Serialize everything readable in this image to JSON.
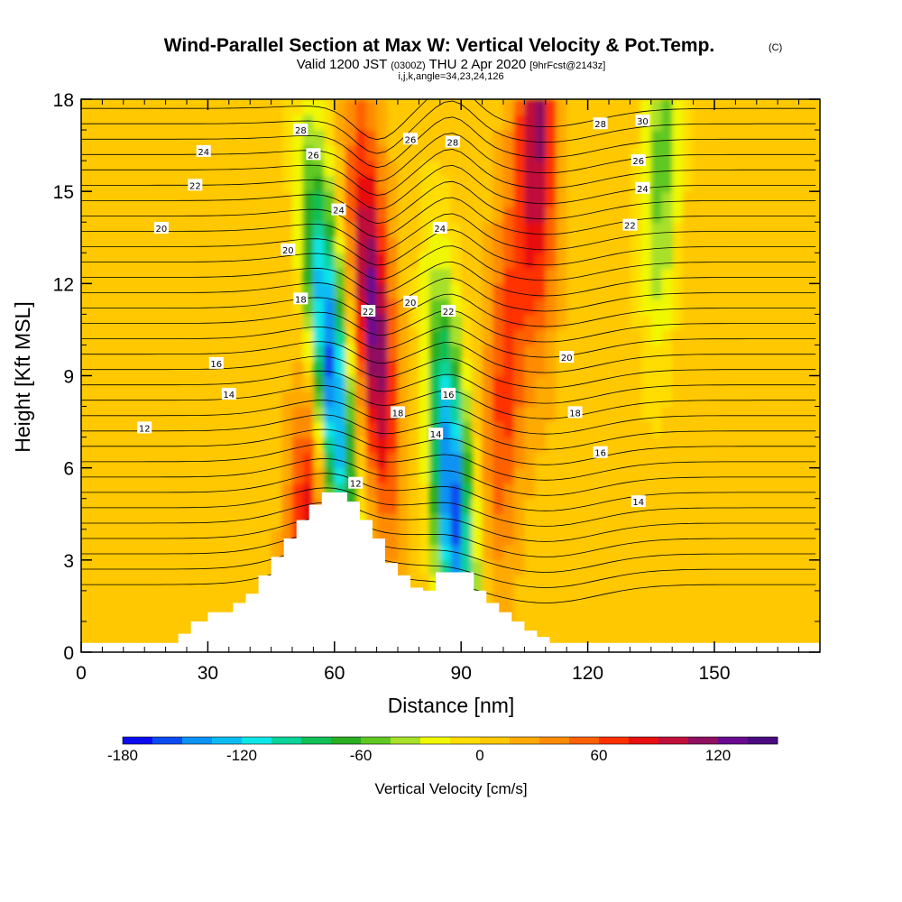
{
  "chart_data": {
    "type": "heatmap",
    "title": "Wind-Parallel Section at Max W: Vertical Velocity & Pot.Temp.",
    "title_mark": "(C)",
    "subtitle": {
      "valid": "Valid 1200 JST",
      "utc": "(0300Z)",
      "date": "THU 2 Apr 2020",
      "fcst": "[9hrFcst@2143z]"
    },
    "indices": "i,j,k,angle=34,23,24,126",
    "xlabel": "Distance [nm]",
    "ylabel": "Height [Kft MSL]",
    "xlim": [
      0,
      175
    ],
    "ylim": [
      0,
      18
    ],
    "xticks": [
      "0",
      "30",
      "60",
      "90",
      "120",
      "150"
    ],
    "yticks": [
      "0",
      "3",
      "6",
      "9",
      "12",
      "15",
      "18"
    ],
    "xtick_values": [
      0,
      30,
      60,
      90,
      120,
      150
    ],
    "ytick_values": [
      0,
      3,
      6,
      9,
      12,
      15,
      18
    ],
    "colorbar": {
      "label": "Vertical Velocity [cm/s]",
      "ticks": [
        "-180",
        "-120",
        "-60",
        "0",
        "60",
        "120"
      ],
      "tick_values": [
        -180,
        -120,
        -60,
        0,
        60,
        120
      ],
      "range": [
        -180,
        150
      ],
      "step": 15,
      "colors": [
        "#0b0bf0",
        "#0a4cf2",
        "#0a93f5",
        "#0bbcf2",
        "#0ce6e6",
        "#0bd49a",
        "#10c056",
        "#2aae22",
        "#60c820",
        "#a8e02a",
        "#f0f800",
        "#ffdd00",
        "#ffc800",
        "#ffaa00",
        "#ff8c00",
        "#ff6000",
        "#ff3000",
        "#e81010",
        "#c0103a",
        "#901060",
        "#6a0a90",
        "#4a0a80"
      ]
    },
    "w_features": [
      {
        "type": "updraft",
        "x_base": 52,
        "x_top": 58,
        "z_top": 8,
        "max_w": 80
      },
      {
        "type": "downdraft",
        "x_base": 64,
        "x_top": 54,
        "z_peak": 9.5,
        "min_w": -180
      },
      {
        "type": "updraft",
        "x_base": 74,
        "x_top": 66,
        "z_peak": 11,
        "max_w": 120
      },
      {
        "type": "downdraft",
        "x_base": 90,
        "x_top": 82,
        "z_peak": 5,
        "min_w": -170
      },
      {
        "type": "updraft",
        "x_base": 98,
        "x_top": 103,
        "z_peak": 9,
        "max_w": 60
      },
      {
        "type": "updraft",
        "x_base": 108,
        "x_top": 108,
        "z_peak": 17,
        "max_w": 100
      },
      {
        "type": "downdraft",
        "x_base": 134,
        "x_top": 138,
        "z_peak": 16,
        "min_w": -60
      }
    ],
    "theta_labels": [
      {
        "x": 15,
        "z": 7.3,
        "text": "12"
      },
      {
        "x": 35,
        "z": 8.4,
        "text": "14"
      },
      {
        "x": 32,
        "z": 9.4,
        "text": "16"
      },
      {
        "x": 52,
        "z": 11.5,
        "text": "18"
      },
      {
        "x": 49,
        "z": 13.1,
        "text": "20"
      },
      {
        "x": 19,
        "z": 13.8,
        "text": "20"
      },
      {
        "x": 27,
        "z": 15.2,
        "text": "22"
      },
      {
        "x": 29,
        "z": 16.3,
        "text": "24"
      },
      {
        "x": 55,
        "z": 16.2,
        "text": "26"
      },
      {
        "x": 52,
        "z": 17.0,
        "text": "28"
      },
      {
        "x": 61,
        "z": 14.4,
        "text": "24"
      },
      {
        "x": 68,
        "z": 11.1,
        "text": "22"
      },
      {
        "x": 75,
        "z": 7.8,
        "text": "18"
      },
      {
        "x": 65,
        "z": 5.5,
        "text": "12"
      },
      {
        "x": 78,
        "z": 11.4,
        "text": "20"
      },
      {
        "x": 84,
        "z": 7.1,
        "text": "14"
      },
      {
        "x": 87,
        "z": 8.4,
        "text": "16"
      },
      {
        "x": 87,
        "z": 11.1,
        "text": "22"
      },
      {
        "x": 85,
        "z": 13.8,
        "text": "24"
      },
      {
        "x": 78,
        "z": 16.7,
        "text": "26"
      },
      {
        "x": 88,
        "z": 16.6,
        "text": "28"
      },
      {
        "x": 123,
        "z": 17.2,
        "text": "28"
      },
      {
        "x": 133,
        "z": 17.3,
        "text": "30"
      },
      {
        "x": 132,
        "z": 16.0,
        "text": "26"
      },
      {
        "x": 133,
        "z": 15.1,
        "text": "24"
      },
      {
        "x": 130,
        "z": 13.9,
        "text": "22"
      },
      {
        "x": 115,
        "z": 9.6,
        "text": "20"
      },
      {
        "x": 117,
        "z": 7.8,
        "text": "18"
      },
      {
        "x": 123,
        "z": 6.5,
        "text": "16"
      },
      {
        "x": 132,
        "z": 4.9,
        "text": "14"
      }
    ],
    "terrain": {
      "x": [
        0,
        20,
        23,
        26,
        30,
        33,
        36,
        39,
        42,
        45,
        48,
        51,
        54,
        57,
        60,
        63,
        66,
        69,
        72,
        75,
        78,
        81,
        84,
        87,
        90,
        93,
        96,
        99,
        102,
        105,
        108,
        111,
        175
      ],
      "z": [
        0.3,
        0.3,
        0.6,
        1.0,
        1.3,
        1.3,
        1.6,
        1.9,
        2.5,
        3.1,
        3.7,
        4.3,
        4.8,
        5.2,
        5.2,
        4.9,
        4.3,
        3.7,
        2.9,
        2.5,
        2.1,
        2.0,
        2.6,
        2.6,
        2.6,
        2.0,
        1.6,
        1.3,
        1.0,
        0.7,
        0.5,
        0.3,
        0.3
      ]
    }
  }
}
